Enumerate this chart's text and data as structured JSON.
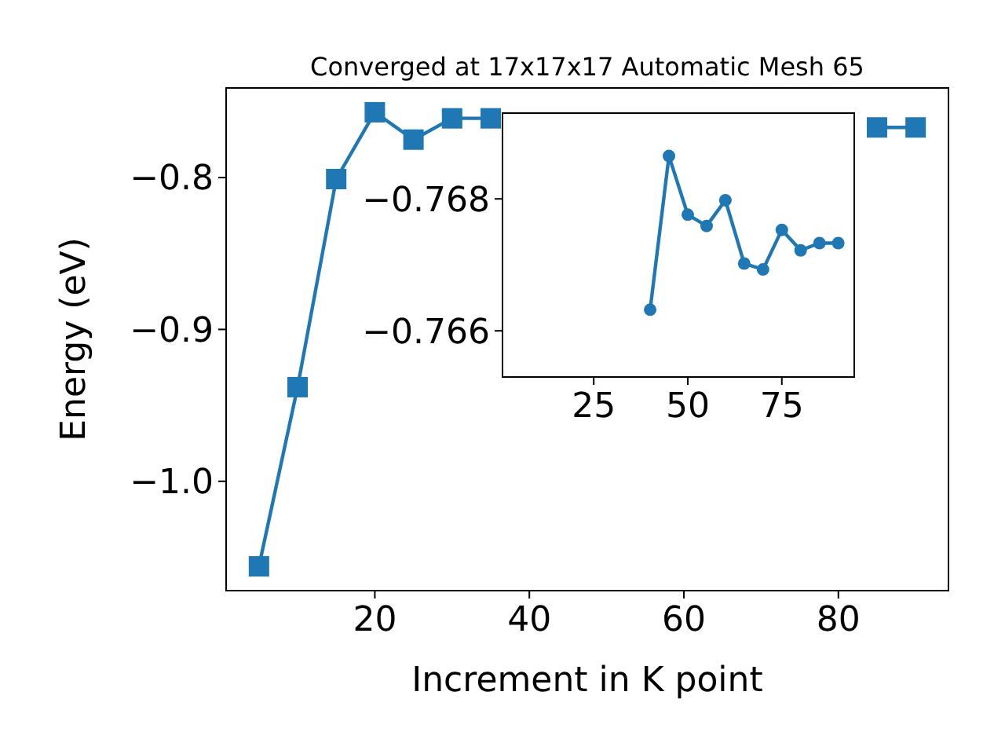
{
  "chart_data": [
    {
      "type": "line",
      "title": "Converged at 17x17x17 Automatic Mesh 65",
      "xlabel": "Increment in K point",
      "ylabel": "Energy (eV)",
      "x": [
        5,
        10,
        15,
        20,
        25,
        30,
        35,
        40,
        45,
        50,
        55,
        60,
        65,
        70,
        75,
        80,
        85,
        90
      ],
      "series": [
        {
          "color": "#1f77b4",
          "values": [
            -1.056,
            -0.938,
            -0.801,
            -0.757,
            -0.775,
            -0.761,
            -0.761,
            null,
            null,
            null,
            null,
            null,
            null,
            null,
            null,
            null,
            -0.767,
            -0.767
          ]
        }
      ],
      "xlim": [
        0.75,
        94.25
      ],
      "xticks": [
        20,
        40,
        60,
        80
      ],
      "ylim": [
        -1.072,
        -0.741
      ],
      "yticks": [
        {
          "value": -1.0,
          "label": "−1.0"
        },
        {
          "value": -0.9,
          "label": "−0.9"
        },
        {
          "value": -0.8,
          "label": "−0.8"
        }
      ],
      "marker": "square",
      "grid": false
    },
    {
      "type": "line",
      "x": [
        40,
        45,
        50,
        55,
        60,
        65,
        70,
        75,
        80,
        85,
        90
      ],
      "series": [
        {
          "color": "#1f77b4",
          "values": [
            -0.76632,
            -0.76865,
            -0.76776,
            -0.76759,
            -0.76798,
            -0.76702,
            -0.76693,
            -0.76753,
            -0.76722,
            -0.76733,
            -0.76733
          ]
        }
      ],
      "xlim": [
        0.75,
        94.25
      ],
      "xticks": [
        25,
        50,
        75
      ],
      "ylim": [
        -0.7653,
        -0.7693
      ],
      "yticks": [
        {
          "value": -0.766,
          "label": "−0.766"
        },
        {
          "value": -0.768,
          "label": "−0.768"
        }
      ],
      "marker": "circle",
      "grid": false
    }
  ]
}
